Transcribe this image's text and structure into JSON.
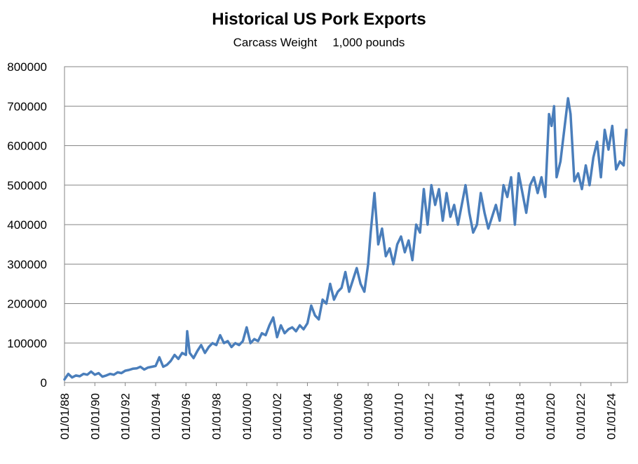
{
  "chart_data": {
    "type": "line",
    "title": "Historical US Pork Exports",
    "subtitle_parts": [
      "Carcass Weight",
      "1,000 pounds"
    ],
    "ylim": [
      0,
      800000
    ],
    "y_ticks": [
      "0",
      "100000",
      "200000",
      "300000",
      "400000",
      "500000",
      "600000",
      "700000",
      "800000"
    ],
    "x_ticks": [
      "01/01/88",
      "01/01/90",
      "01/01/92",
      "01/01/94",
      "01/01/96",
      "01/01/98",
      "01/01/00",
      "01/01/02",
      "01/01/04",
      "01/01/06",
      "01/01/08",
      "01/01/10",
      "01/01/12",
      "01/01/14",
      "01/01/16",
      "01/01/18",
      "01/01/20",
      "01/01/22",
      "01/01/24"
    ],
    "grid": true,
    "color": "#4A7EBB",
    "series": [
      {
        "x": [
          "1988-01",
          "1988-04",
          "1988-07",
          "1988-10",
          "1989-01",
          "1989-04",
          "1989-07",
          "1989-10",
          "1990-01",
          "1990-04",
          "1990-07",
          "1990-10",
          "1991-01",
          "1991-04",
          "1991-07",
          "1991-10",
          "1992-01",
          "1992-04",
          "1992-07",
          "1992-10",
          "1993-01",
          "1993-04",
          "1993-07",
          "1993-10",
          "1994-01",
          "1994-04",
          "1994-07",
          "1994-10",
          "1995-01",
          "1995-04",
          "1995-07",
          "1995-10",
          "1996-01",
          "1996-02",
          "1996-04",
          "1996-07",
          "1996-10",
          "1997-01",
          "1997-04",
          "1997-07",
          "1997-10",
          "1998-01",
          "1998-04",
          "1998-07",
          "1998-10",
          "1999-01",
          "1999-04",
          "1999-07",
          "1999-10",
          "2000-01",
          "2000-04",
          "2000-07",
          "2000-10",
          "2001-01",
          "2001-04",
          "2001-07",
          "2001-10",
          "2002-01",
          "2002-04",
          "2002-07",
          "2002-10",
          "2003-01",
          "2003-04",
          "2003-07",
          "2003-10",
          "2004-01",
          "2004-04",
          "2004-07",
          "2004-10",
          "2005-01",
          "2005-04",
          "2005-07",
          "2005-10",
          "2006-01",
          "2006-04",
          "2006-07",
          "2006-10",
          "2007-01",
          "2007-04",
          "2007-07",
          "2007-10",
          "2008-01",
          "2008-03",
          "2008-06",
          "2008-09",
          "2008-12",
          "2009-03",
          "2009-06",
          "2009-09",
          "2009-12",
          "2010-03",
          "2010-06",
          "2010-09",
          "2010-12",
          "2011-03",
          "2011-06",
          "2011-09",
          "2011-12",
          "2012-03",
          "2012-06",
          "2012-09",
          "2012-12",
          "2013-03",
          "2013-06",
          "2013-09",
          "2013-12",
          "2014-03",
          "2014-06",
          "2014-09",
          "2014-12",
          "2015-03",
          "2015-06",
          "2015-09",
          "2015-12",
          "2016-03",
          "2016-06",
          "2016-09",
          "2016-12",
          "2017-03",
          "2017-06",
          "2017-09",
          "2017-12",
          "2018-03",
          "2018-06",
          "2018-09",
          "2018-12",
          "2019-03",
          "2019-06",
          "2019-09",
          "2019-12",
          "2020-02",
          "2020-04",
          "2020-06",
          "2020-09",
          "2020-12",
          "2021-03",
          "2021-05",
          "2021-08",
          "2021-11",
          "2022-02",
          "2022-05",
          "2022-08",
          "2022-11",
          "2023-02",
          "2023-05",
          "2023-08",
          "2023-11",
          "2024-02",
          "2024-05",
          "2024-08",
          "2024-11",
          "2025-01"
        ],
        "values": [
          8000,
          22000,
          13000,
          18000,
          16000,
          22000,
          20000,
          28000,
          20000,
          24000,
          15000,
          18000,
          22000,
          20000,
          26000,
          24000,
          30000,
          32000,
          35000,
          36000,
          40000,
          33000,
          38000,
          40000,
          42000,
          64000,
          40000,
          45000,
          55000,
          70000,
          60000,
          75000,
          70000,
          130000,
          75000,
          62000,
          80000,
          95000,
          75000,
          90000,
          100000,
          95000,
          120000,
          100000,
          105000,
          90000,
          100000,
          95000,
          105000,
          140000,
          100000,
          110000,
          105000,
          125000,
          120000,
          145000,
          165000,
          115000,
          145000,
          125000,
          135000,
          140000,
          130000,
          145000,
          135000,
          150000,
          195000,
          170000,
          160000,
          210000,
          200000,
          250000,
          210000,
          230000,
          240000,
          280000,
          230000,
          260000,
          290000,
          250000,
          230000,
          300000,
          380000,
          480000,
          350000,
          390000,
          320000,
          340000,
          300000,
          350000,
          370000,
          330000,
          360000,
          310000,
          400000,
          380000,
          490000,
          400000,
          500000,
          450000,
          490000,
          410000,
          480000,
          420000,
          450000,
          400000,
          450000,
          500000,
          430000,
          380000,
          400000,
          480000,
          430000,
          390000,
          420000,
          450000,
          410000,
          500000,
          470000,
          520000,
          400000,
          530000,
          480000,
          430000,
          500000,
          520000,
          480000,
          520000,
          470000,
          680000,
          650000,
          700000,
          520000,
          560000,
          640000,
          720000,
          680000,
          510000,
          530000,
          490000,
          550000,
          500000,
          570000,
          610000,
          520000,
          640000,
          590000,
          650000,
          540000,
          560000,
          550000,
          640000
        ]
      }
    ]
  }
}
